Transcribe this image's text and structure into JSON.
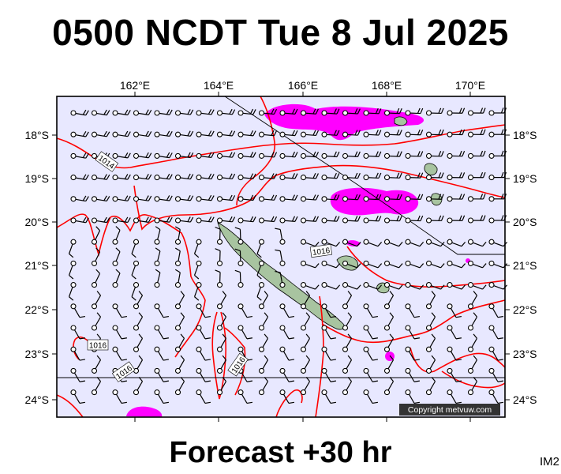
{
  "title": "0500 NCDT Tue 8 Jul 2025",
  "footer": "Forecast +30 hr",
  "map_id": "IM2",
  "copyright": "Copyright metvuw.com",
  "longitude_labels": [
    "162°E",
    "164°E",
    "166°E",
    "168°E",
    "170°E"
  ],
  "latitude_labels": [
    "18°S",
    "19°S",
    "20°S",
    "21°S",
    "22°S",
    "23°S",
    "24°S"
  ],
  "isobar_labels": [
    "1014",
    "1016",
    "1016",
    "1016",
    "1016"
  ],
  "colors": {
    "sea": "#e8e8ff",
    "isobar": "#ff0000",
    "precipitation": "#ff00ff",
    "land": "#a8c4a0",
    "frame": "#000000"
  }
}
